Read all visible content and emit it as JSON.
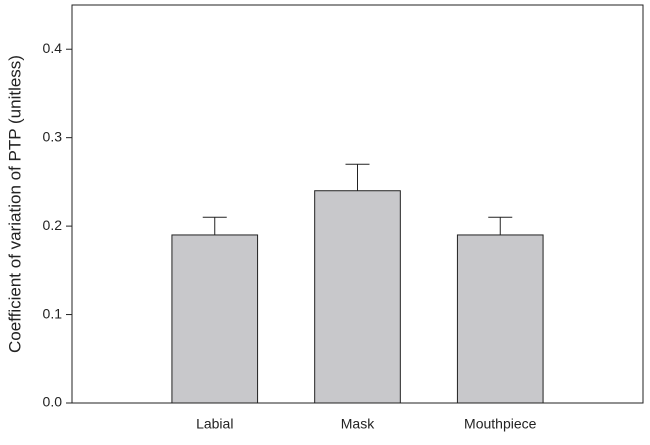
{
  "chart_data": {
    "type": "bar",
    "y_label": "Coefficient of variation of PTP (unitless)",
    "categories": [
      "Labial",
      "Mask",
      "Mouthpiece"
    ],
    "values": [
      0.19,
      0.24,
      0.19
    ],
    "errors": [
      0.02,
      0.03,
      0.02
    ],
    "color": "#c8c8cb",
    "ylim": [
      0,
      0.45
    ],
    "yticks": [
      {
        "value": 0,
        "label": "0.0"
      },
      0.1,
      0.2,
      0.3,
      0.4
    ],
    "grid": false
  }
}
